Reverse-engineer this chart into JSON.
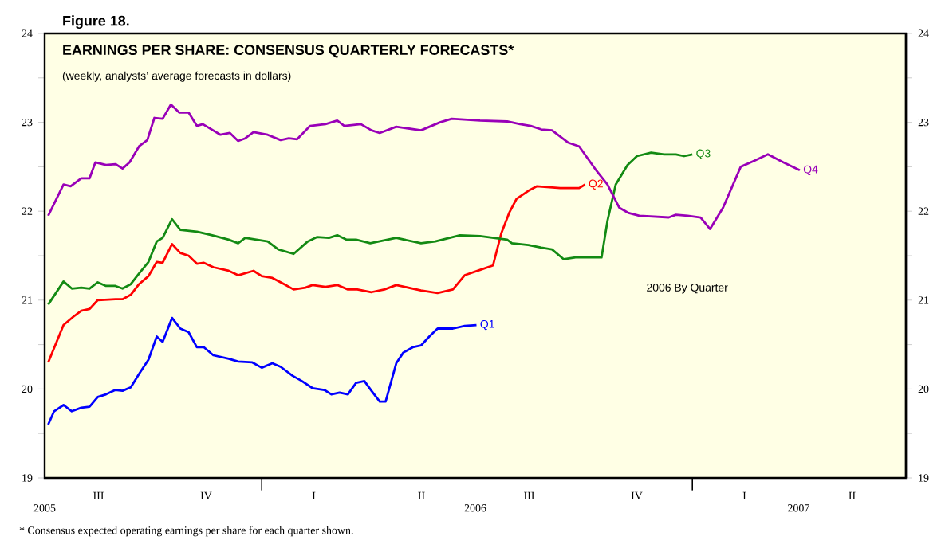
{
  "chart_data": {
    "type": "line",
    "title": "EARNINGS PER SHARE: CONSENSUS QUARTERLY FORECASTS*",
    "subtitle": "(weekly, analysts’ average forecasts in dollars)",
    "annotations": [
      "Figure 18.",
      "2006 By Quarter",
      "*  Consensus expected operating earnings per share for each quarter shown.",
      "III",
      "IV",
      "I",
      "II",
      "III",
      "IV",
      "I",
      "II"
    ],
    "xlim": [
      "2005-07-01",
      "2007-07-01"
    ],
    "xticks": [
      {
        "value": "2005-07-01",
        "label": "2005"
      },
      {
        "value": "2006-01-01",
        "label": null
      },
      {
        "value": "2006-07-01",
        "label": "2006"
      },
      {
        "value": "2007-01-01",
        "label": null
      },
      {
        "value": "2007-04-01",
        "label": "2007"
      }
    ],
    "ylim": [
      19,
      24
    ],
    "yticks": [
      19,
      {
        "value": 19.5,
        "label": null
      },
      20,
      {
        "value": 20.5,
        "label": null
      },
      21,
      {
        "value": 21.5,
        "label": null
      },
      22,
      {
        "value": 22.5,
        "label": null
      },
      23,
      {
        "value": 23.5,
        "label": null
      },
      24
    ],
    "y2lim": [
      19,
      24
    ],
    "y2ticks": [
      19,
      {
        "value": 19.5,
        "label": null
      },
      20,
      {
        "value": 20.5,
        "label": null
      },
      21,
      {
        "value": 21.5,
        "label": null
      },
      22,
      {
        "value": 22.5,
        "label": null
      },
      23,
      {
        "value": 23.5,
        "label": null
      },
      24
    ],
    "grid": false,
    "legend": false,
    "marker": "none",
    "line_style": "solid",
    "series": [
      {
        "name": "Q1",
        "color": "#0000ff",
        "x": [
          "2005-07-04",
          "2005-07-09",
          "2005-07-17",
          "2005-07-24",
          "2005-08-01",
          "2005-08-08",
          "2005-08-15",
          "2005-08-22",
          "2005-08-30",
          "2005-09-05",
          "2005-09-12",
          "2005-09-19",
          "2005-09-27",
          "2005-10-04",
          "2005-10-09",
          "2005-10-17",
          "2005-10-24",
          "2005-10-31",
          "2005-11-07",
          "2005-11-13",
          "2005-11-21",
          "2005-12-04",
          "2005-12-12",
          "2005-12-24",
          "2006-01-01",
          "2006-01-10",
          "2006-01-17",
          "2006-01-27",
          "2006-02-04",
          "2006-02-13",
          "2006-02-23",
          "2006-03-01",
          "2006-03-08",
          "2006-03-15",
          "2006-03-22",
          "2006-03-29",
          "2006-04-04",
          "2006-04-11",
          "2006-04-16",
          "2006-04-25",
          "2006-05-01",
          "2006-05-09",
          "2006-05-16",
          "2006-05-23",
          "2006-05-30",
          "2006-06-12",
          "2006-06-22",
          "2006-07-02"
        ],
        "values": [
          19.6,
          19.75,
          19.82,
          19.75,
          19.79,
          19.8,
          19.91,
          19.94,
          19.99,
          19.98,
          20.02,
          20.17,
          20.33,
          20.59,
          20.53,
          20.8,
          20.68,
          20.64,
          20.47,
          20.47,
          20.38,
          20.34,
          20.31,
          20.3,
          20.24,
          20.29,
          20.25,
          20.15,
          20.09,
          20.01,
          19.99,
          19.94,
          19.96,
          19.94,
          20.07,
          20.09,
          19.98,
          19.86,
          19.86,
          20.29,
          20.41,
          20.47,
          20.49,
          20.59,
          20.68,
          20.68,
          20.71,
          20.72
        ]
      },
      {
        "name": "Q2",
        "color": "#ff0000",
        "x": [
          "2005-07-04",
          "2005-07-17",
          "2005-07-25",
          "2005-08-01",
          "2005-08-08",
          "2005-08-15",
          "2005-08-30",
          "2005-09-05",
          "2005-09-12",
          "2005-09-19",
          "2005-09-27",
          "2005-10-04",
          "2005-10-09",
          "2005-10-17",
          "2005-10-24",
          "2005-10-31",
          "2005-11-07",
          "2005-11-13",
          "2005-11-21",
          "2005-12-04",
          "2005-12-12",
          "2005-12-25",
          "2006-01-01",
          "2006-01-10",
          "2006-01-20",
          "2006-01-28",
          "2006-02-07",
          "2006-02-13",
          "2006-02-24",
          "2006-03-06",
          "2006-03-15",
          "2006-03-23",
          "2006-04-04",
          "2006-04-15",
          "2006-04-25",
          "2006-05-16",
          "2006-05-30",
          "2006-06-12",
          "2006-06-22",
          "2006-07-05",
          "2006-07-16",
          "2006-07-23",
          "2006-07-30",
          "2006-08-05",
          "2006-08-15",
          "2006-08-22",
          "2006-09-11",
          "2006-09-27",
          "2006-10-02"
        ],
        "values": [
          20.3,
          20.72,
          20.81,
          20.88,
          20.9,
          21.0,
          21.01,
          21.01,
          21.06,
          21.18,
          21.27,
          21.43,
          21.42,
          21.63,
          21.53,
          21.5,
          21.41,
          21.42,
          21.37,
          21.33,
          21.28,
          21.33,
          21.27,
          21.25,
          21.18,
          21.12,
          21.14,
          21.17,
          21.15,
          21.17,
          21.12,
          21.12,
          21.09,
          21.12,
          21.17,
          21.11,
          21.08,
          21.12,
          21.28,
          21.34,
          21.39,
          21.75,
          21.99,
          22.14,
          22.23,
          22.28,
          22.26,
          22.26,
          22.3
        ]
      },
      {
        "name": "Q3",
        "color": "#138a13",
        "x": [
          "2005-07-04",
          "2005-07-17",
          "2005-07-24",
          "2005-08-01",
          "2005-08-08",
          "2005-08-15",
          "2005-08-22",
          "2005-08-30",
          "2005-09-05",
          "2005-09-12",
          "2005-09-19",
          "2005-09-27",
          "2005-10-04",
          "2005-10-09",
          "2005-10-17",
          "2005-10-24",
          "2005-11-07",
          "2005-11-20",
          "2005-12-04",
          "2005-12-12",
          "2005-12-18",
          "2006-01-06",
          "2006-01-15",
          "2006-01-28",
          "2006-02-09",
          "2006-02-17",
          "2006-02-27",
          "2006-03-06",
          "2006-03-14",
          "2006-03-22",
          "2006-04-03",
          "2006-04-25",
          "2006-05-16",
          "2006-05-28",
          "2006-06-18",
          "2006-07-05",
          "2006-07-28",
          "2006-08-01",
          "2006-08-15",
          "2006-08-26",
          "2006-09-04",
          "2006-09-14",
          "2006-09-24",
          "2006-10-05",
          "2006-10-16",
          "2006-10-21",
          "2006-10-28",
          "2006-11-07",
          "2006-11-15",
          "2006-11-27",
          "2006-12-08",
          "2006-12-18",
          "2006-12-25",
          "2007-01-01"
        ],
        "values": [
          20.95,
          21.21,
          21.13,
          21.14,
          21.13,
          21.2,
          21.16,
          21.16,
          21.13,
          21.18,
          21.3,
          21.43,
          21.66,
          21.7,
          21.91,
          21.79,
          21.77,
          21.73,
          21.68,
          21.64,
          21.7,
          21.66,
          21.57,
          21.52,
          21.66,
          21.71,
          21.7,
          21.73,
          21.68,
          21.68,
          21.64,
          21.7,
          21.64,
          21.66,
          21.73,
          21.72,
          21.68,
          21.64,
          21.62,
          21.59,
          21.57,
          21.46,
          21.48,
          21.48,
          21.48,
          21.89,
          22.3,
          22.52,
          22.62,
          22.66,
          22.64,
          22.64,
          22.62,
          22.64
        ]
      },
      {
        "name": "Q4",
        "color": "#9900b8",
        "x": [
          "2005-07-04",
          "2005-07-17",
          "2005-07-23",
          "2005-08-01",
          "2005-08-08",
          "2005-08-13",
          "2005-08-22",
          "2005-08-30",
          "2005-09-05",
          "2005-09-11",
          "2005-09-19",
          "2005-09-26",
          "2005-10-02",
          "2005-10-09",
          "2005-10-16",
          "2005-10-23",
          "2005-10-31",
          "2005-11-07",
          "2005-11-12",
          "2005-11-27",
          "2005-12-05",
          "2005-12-12",
          "2005-12-18",
          "2005-12-25",
          "2006-01-06",
          "2006-01-17",
          "2006-01-24",
          "2006-01-31",
          "2006-02-11",
          "2006-02-24",
          "2006-03-06",
          "2006-03-12",
          "2006-03-26",
          "2006-04-04",
          "2006-04-11",
          "2006-04-25",
          "2006-05-16",
          "2006-06-01",
          "2006-06-11",
          "2006-07-05",
          "2006-07-28",
          "2006-08-08",
          "2006-08-17",
          "2006-08-26",
          "2006-09-04",
          "2006-09-18",
          "2006-09-27",
          "2006-10-12",
          "2006-10-21",
          "2006-10-31",
          "2006-11-08",
          "2006-11-17",
          "2006-12-12",
          "2006-12-18",
          "2006-12-28",
          "2007-01-08",
          "2007-01-16",
          "2007-01-27",
          "2007-02-11",
          "2007-02-23",
          "2007-03-06",
          "2007-03-19",
          "2007-04-02"
        ],
        "values": [
          21.95,
          22.3,
          22.28,
          22.37,
          22.37,
          22.55,
          22.52,
          22.53,
          22.48,
          22.55,
          22.73,
          22.8,
          23.05,
          23.04,
          23.2,
          23.11,
          23.11,
          22.96,
          22.98,
          22.86,
          22.88,
          22.79,
          22.82,
          22.89,
          22.86,
          22.8,
          22.82,
          22.81,
          22.96,
          22.98,
          23.02,
          22.96,
          22.98,
          22.91,
          22.88,
          22.95,
          22.91,
          23.0,
          23.04,
          23.02,
          23.01,
          22.98,
          22.96,
          22.92,
          22.91,
          22.77,
          22.73,
          22.45,
          22.3,
          22.04,
          21.98,
          21.95,
          21.93,
          21.96,
          21.95,
          21.93,
          21.8,
          22.04,
          22.5,
          22.57,
          22.64,
          22.55,
          22.46
        ]
      }
    ]
  }
}
